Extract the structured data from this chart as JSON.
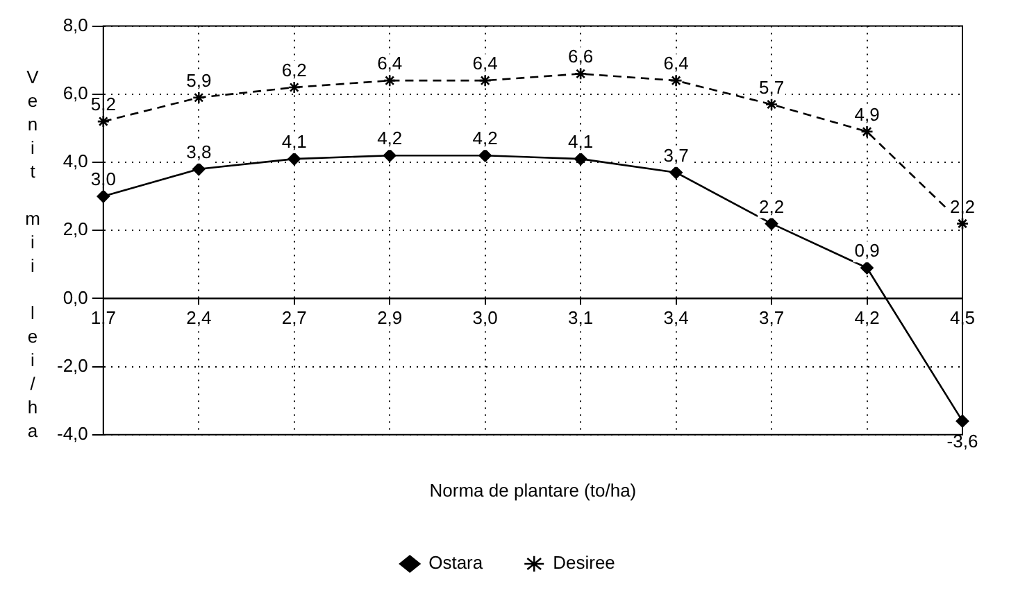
{
  "chart_data": {
    "type": "line",
    "xlabel": "Norma de plantare (to/ha)",
    "ylabel": "Venit mii lei/ha",
    "categories": [
      "1,7",
      "2,4",
      "2,7",
      "2,9",
      "3,0",
      "3,1",
      "3,4",
      "3,7",
      "4,2",
      "4,5"
    ],
    "series": [
      {
        "name": "Ostara",
        "color": "#000000",
        "marker": "diamond",
        "line_style": "solid",
        "values": [
          3.0,
          3.8,
          4.1,
          4.2,
          4.2,
          4.1,
          3.7,
          2.2,
          0.9,
          -3.6
        ],
        "value_labels": [
          "3,0",
          "3,8",
          "4,1",
          "4,2",
          "4,2",
          "4,1",
          "3,7",
          "2,2",
          "0,9",
          "-3,6"
        ]
      },
      {
        "name": "Desiree",
        "color": "#000000",
        "marker": "cross",
        "line_style": "dashed",
        "values": [
          5.2,
          5.9,
          6.2,
          6.4,
          6.4,
          6.6,
          6.4,
          5.7,
          4.9,
          2.2
        ],
        "value_labels": [
          "5,2",
          "5,9",
          "6,2",
          "6,4",
          "6,4",
          "6,6",
          "6,4",
          "5,7",
          "4,9",
          "2,2"
        ]
      }
    ],
    "ylim": [
      -4,
      8
    ],
    "yticks": [
      {
        "value": -4,
        "label": "-4,0"
      },
      {
        "value": -2,
        "label": "-2,0"
      },
      {
        "value": 0,
        "label": "0,0"
      },
      {
        "value": 2,
        "label": "2,0"
      },
      {
        "value": 4,
        "label": "4,0"
      },
      {
        "value": 6,
        "label": "6,0"
      },
      {
        "value": 8,
        "label": "8,0"
      }
    ],
    "grid": true,
    "legend": "bottom"
  }
}
